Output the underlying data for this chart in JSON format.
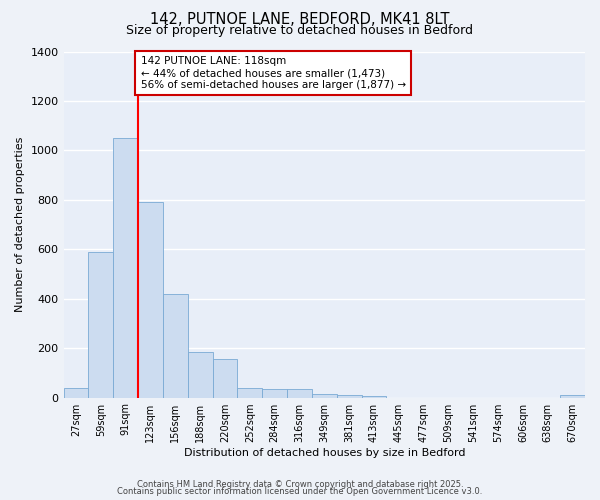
{
  "title": "142, PUTNOE LANE, BEDFORD, MK41 8LT",
  "subtitle": "Size of property relative to detached houses in Bedford",
  "xlabel": "Distribution of detached houses by size in Bedford",
  "ylabel": "Number of detached properties",
  "bin_labels": [
    "27sqm",
    "59sqm",
    "91sqm",
    "123sqm",
    "156sqm",
    "188sqm",
    "220sqm",
    "252sqm",
    "284sqm",
    "316sqm",
    "349sqm",
    "381sqm",
    "413sqm",
    "445sqm",
    "477sqm",
    "509sqm",
    "541sqm",
    "574sqm",
    "606sqm",
    "638sqm",
    "670sqm"
  ],
  "bar_values": [
    40,
    590,
    1050,
    790,
    420,
    185,
    155,
    40,
    35,
    35,
    15,
    10,
    8,
    0,
    0,
    0,
    0,
    0,
    0,
    0,
    10
  ],
  "bar_color": "#ccdcf0",
  "bar_edge_color": "#7aaad4",
  "red_line_index": 3,
  "annotation_line1": "142 PUTNOE LANE: 118sqm",
  "annotation_line2": "← 44% of detached houses are smaller (1,473)",
  "annotation_line3": "56% of semi-detached houses are larger (1,877) →",
  "annotation_box_color": "#ffffff",
  "annotation_box_edge": "#cc0000",
  "ylim": [
    0,
    1400
  ],
  "yticks": [
    0,
    200,
    400,
    600,
    800,
    1000,
    1200,
    1400
  ],
  "footer1": "Contains HM Land Registry data © Crown copyright and database right 2025.",
  "footer2": "Contains public sector information licensed under the Open Government Licence v3.0.",
  "bg_color": "#eef2f8",
  "plot_bg_color": "#e8eef8",
  "grid_color": "#ffffff"
}
